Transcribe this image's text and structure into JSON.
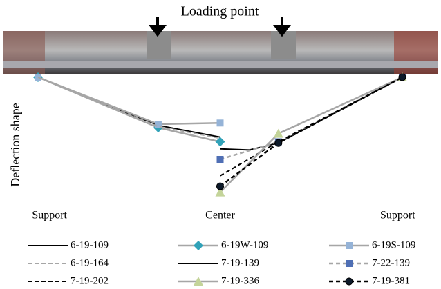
{
  "chart_data": {
    "type": "line",
    "title": "Loading point",
    "ylabel": "Deflection shape",
    "xlim": [
      0,
      1
    ],
    "ylim": [
      -1,
      0
    ],
    "xticks": [
      {
        "value": 0,
        "label": "Support"
      },
      {
        "value": 0.5,
        "label": "Center"
      },
      {
        "value": 1,
        "label": "Support"
      }
    ],
    "series": [
      {
        "name": "6-19-109",
        "color": "#000000",
        "dash": false,
        "marker": null,
        "x": [
          0,
          0.33,
          0.5
        ],
        "values": [
          0,
          -0.41,
          -0.51
        ]
      },
      {
        "name": "6-19W-109",
        "color": "#a6a6a6",
        "marker_color": "#31a2b8",
        "dash": false,
        "marker": "diamond",
        "x": [
          0,
          0.33,
          0.5
        ],
        "values": [
          0,
          -0.43,
          -0.55
        ]
      },
      {
        "name": "6-19S-109",
        "color": "#a6a6a6",
        "marker_color": "#95b3d7",
        "dash": false,
        "marker": "square",
        "x": [
          0,
          0.33,
          0.5
        ],
        "values": [
          0,
          -0.4,
          -0.39
        ]
      },
      {
        "name": "6-19-164",
        "color": "#a6a6a6",
        "dash": true,
        "marker": null,
        "x": [
          0,
          0.33,
          0.5
        ],
        "values": [
          0,
          -0.42,
          -0.52
        ]
      },
      {
        "name": "7-19-139",
        "color": "#000000",
        "dash": false,
        "marker": null,
        "x": [
          0.5,
          0.58,
          0.66,
          1
        ],
        "values": [
          -0.61,
          -0.62,
          -0.56,
          0
        ]
      },
      {
        "name": "7-22-139",
        "color": "#a6a6a6",
        "marker_color": "#4f6fb5",
        "dash": true,
        "marker": "square",
        "x": [
          0.5,
          0.66,
          1
        ],
        "values": [
          -0.7,
          -0.55,
          0
        ]
      },
      {
        "name": "7-19-202",
        "color": "#000000",
        "dash": true,
        "marker": null,
        "x": [
          0.5,
          0.66,
          1
        ],
        "values": [
          -0.84,
          -0.55,
          0
        ]
      },
      {
        "name": "7-19-336",
        "color": "#a6a6a6",
        "marker_color": "#c4d49a",
        "dash": false,
        "marker": "triangle",
        "x": [
          0.5,
          0.66,
          1
        ],
        "values": [
          -0.98,
          -0.48,
          0
        ]
      },
      {
        "name": "7-19-381",
        "color": "#000000",
        "marker_color": "#0d1a2a",
        "dash": true,
        "marker": "circle",
        "x": [
          0.5,
          0.66,
          1
        ],
        "values": [
          -0.93,
          -0.56,
          0
        ]
      }
    ]
  }
}
